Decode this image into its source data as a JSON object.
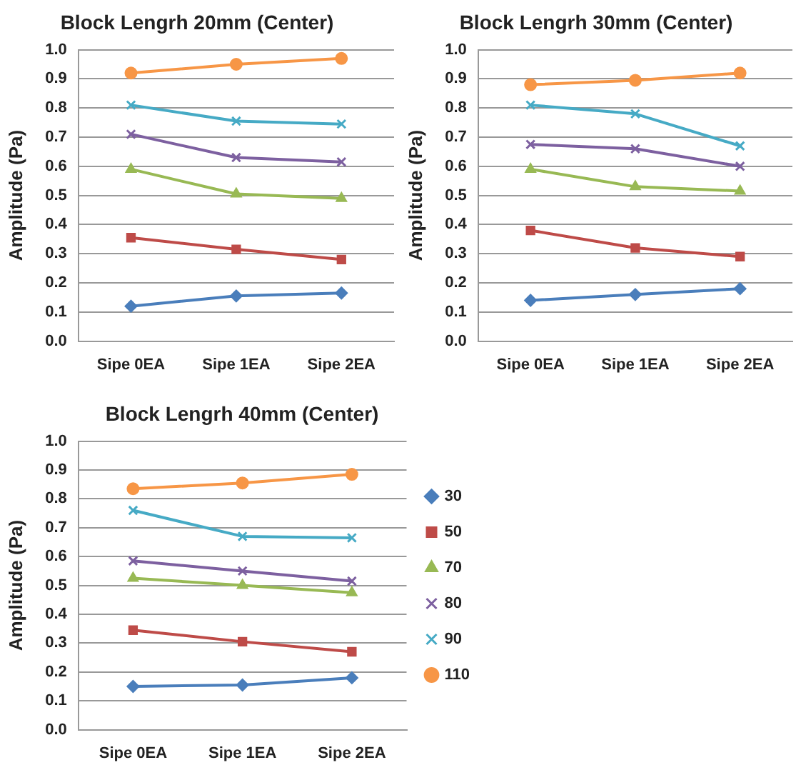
{
  "chart_data": [
    {
      "type": "line",
      "title": "Block Lengrh 20mm (Center)",
      "ylabel": "Amplitude (Pa)",
      "categories": [
        "Sipe 0EA",
        "Sipe 1EA",
        "Sipe 2EA"
      ],
      "ylim": [
        0,
        1
      ],
      "yticks": [
        {
          "value": 0,
          "label": "0.0"
        },
        {
          "value": 0.1,
          "label": "0.1"
        },
        {
          "value": 0.2,
          "label": "0.2"
        },
        {
          "value": 0.3,
          "label": "0.3"
        },
        {
          "value": 0.4,
          "label": "0.4"
        },
        {
          "value": 0.5,
          "label": "0.5"
        },
        {
          "value": 0.6,
          "label": "0.6"
        },
        {
          "value": 0.7,
          "label": "0.7"
        },
        {
          "value": 0.8,
          "label": "0.8"
        },
        {
          "value": 0.9,
          "label": "0.9"
        },
        {
          "value": 1,
          "label": "1.0"
        }
      ],
      "grid": "y",
      "legend": false,
      "series": [
        {
          "color": "#4a7ebb",
          "marker": "diamond",
          "values": [
            0.12,
            0.155,
            0.165
          ]
        },
        {
          "color": "#be4b48",
          "marker": "square",
          "values": [
            0.355,
            0.315,
            0.28
          ]
        },
        {
          "color": "#98b954",
          "marker": "triangle",
          "values": [
            0.59,
            0.505,
            0.49
          ]
        },
        {
          "color": "#7d60a0",
          "marker": "cross",
          "values": [
            0.71,
            0.63,
            0.615
          ]
        },
        {
          "color": "#46aac5",
          "marker": "cross",
          "values": [
            0.81,
            0.755,
            0.745
          ]
        },
        {
          "color": "#f79646",
          "marker": "circle",
          "values": [
            0.92,
            0.95,
            0.97
          ]
        }
      ]
    },
    {
      "type": "line",
      "title": "Block Lengrh 30mm (Center)",
      "ylabel": "Amplitude (Pa)",
      "categories": [
        "Sipe 0EA",
        "Sipe 1EA",
        "Sipe 2EA"
      ],
      "ylim": [
        0,
        1
      ],
      "yticks": [
        {
          "value": 0,
          "label": "0.0"
        },
        {
          "value": 0.1,
          "label": "0.1"
        },
        {
          "value": 0.2,
          "label": "0.2"
        },
        {
          "value": 0.3,
          "label": "0.3"
        },
        {
          "value": 0.4,
          "label": "0.4"
        },
        {
          "value": 0.5,
          "label": "0.5"
        },
        {
          "value": 0.6,
          "label": "0.6"
        },
        {
          "value": 0.7,
          "label": "0.7"
        },
        {
          "value": 0.8,
          "label": "0.8"
        },
        {
          "value": 0.9,
          "label": "0.9"
        },
        {
          "value": 1,
          "label": "1.0"
        }
      ],
      "grid": "y",
      "legend": false,
      "series": [
        {
          "color": "#4a7ebb",
          "marker": "diamond",
          "values": [
            0.14,
            0.16,
            0.18
          ]
        },
        {
          "color": "#be4b48",
          "marker": "square",
          "values": [
            0.38,
            0.32,
            0.29
          ]
        },
        {
          "color": "#98b954",
          "marker": "triangle",
          "values": [
            0.59,
            0.53,
            0.515
          ]
        },
        {
          "color": "#7d60a0",
          "marker": "cross",
          "values": [
            0.675,
            0.66,
            0.6
          ]
        },
        {
          "color": "#46aac5",
          "marker": "cross",
          "values": [
            0.81,
            0.78,
            0.67
          ]
        },
        {
          "color": "#f79646",
          "marker": "circle",
          "values": [
            0.88,
            0.895,
            0.92
          ]
        }
      ]
    },
    {
      "type": "line",
      "title": "Block Lengrh 40mm (Center)",
      "ylabel": "Amplitude (Pa)",
      "categories": [
        "Sipe 0EA",
        "Sipe 1EA",
        "Sipe 2EA"
      ],
      "ylim": [
        0,
        1
      ],
      "yticks": [
        {
          "value": 0,
          "label": "0.0"
        },
        {
          "value": 0.1,
          "label": "0.1"
        },
        {
          "value": 0.2,
          "label": "0.2"
        },
        {
          "value": 0.3,
          "label": "0.3"
        },
        {
          "value": 0.4,
          "label": "0.4"
        },
        {
          "value": 0.5,
          "label": "0.5"
        },
        {
          "value": 0.6,
          "label": "0.6"
        },
        {
          "value": 0.7,
          "label": "0.7"
        },
        {
          "value": 0.8,
          "label": "0.8"
        },
        {
          "value": 0.9,
          "label": "0.9"
        },
        {
          "value": 1,
          "label": "1.0"
        }
      ],
      "grid": "y",
      "legend": "right",
      "series": [
        {
          "name": "30",
          "color": "#4a7ebb",
          "marker": "diamond",
          "values": [
            0.15,
            0.155,
            0.18
          ]
        },
        {
          "name": "50",
          "color": "#be4b48",
          "marker": "square",
          "values": [
            0.345,
            0.305,
            0.27
          ]
        },
        {
          "name": "70",
          "color": "#98b954",
          "marker": "triangle",
          "values": [
            0.525,
            0.5,
            0.475
          ]
        },
        {
          "name": "80",
          "color": "#7d60a0",
          "marker": "cross",
          "values": [
            0.585,
            0.55,
            0.515
          ]
        },
        {
          "name": "90",
          "color": "#46aac5",
          "marker": "cross",
          "values": [
            0.76,
            0.67,
            0.665
          ]
        },
        {
          "name": "110",
          "color": "#f79646",
          "marker": "circle",
          "values": [
            0.835,
            0.855,
            0.885
          ]
        }
      ]
    }
  ]
}
